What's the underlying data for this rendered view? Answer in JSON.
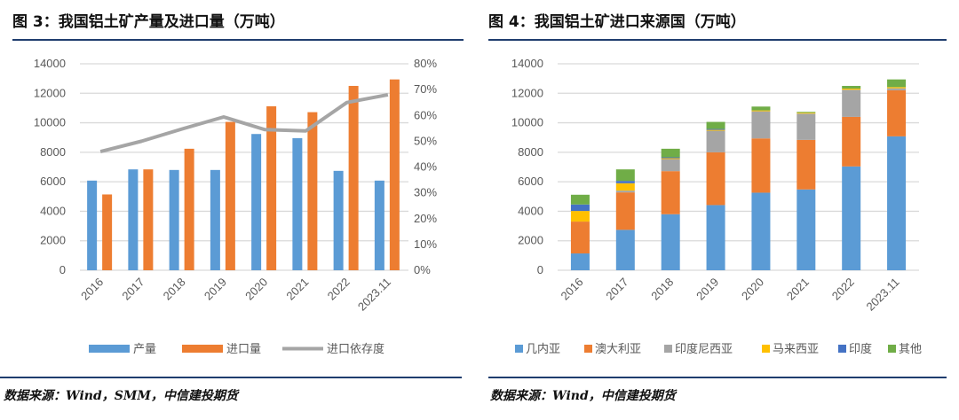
{
  "left": {
    "title": "图 3：我国铝土矿产量及进口量（万吨）",
    "source": "数据来源：Wind，SMM，中信建投期货"
  },
  "right": {
    "title": "图 4：我国铝土矿进口来源国（万吨）",
    "source": "数据来源：Wind，中信建投期货"
  },
  "chart_data": [
    {
      "type": "bar+line",
      "categories": [
        "2016",
        "2017",
        "2018",
        "2019",
        "2020",
        "2021",
        "2022",
        "2023.11"
      ],
      "ylim": [
        0,
        14000
      ],
      "yticks": [
        0,
        2000,
        4000,
        6000,
        8000,
        10000,
        12000,
        14000
      ],
      "y2lim": [
        0,
        0.8
      ],
      "y2ticks": [
        "0%",
        "10%",
        "20%",
        "30%",
        "40%",
        "50%",
        "60%",
        "70%",
        "80%"
      ],
      "grid": true,
      "legend": "bottom",
      "series": [
        {
          "name": "产量",
          "type": "bar",
          "color": "#5B9BD5",
          "values": [
            6080,
            6840,
            6800,
            6800,
            9240,
            8960,
            6740,
            6080
          ]
        },
        {
          "name": "进口量",
          "type": "bar",
          "color": "#ED7D31",
          "values": [
            5140,
            6840,
            8240,
            10060,
            11120,
            10720,
            12500,
            12940
          ]
        },
        {
          "name": "进口依存度",
          "type": "line",
          "axis": "right",
          "color": "#A5A5A5",
          "values": [
            0.46,
            0.5,
            0.548,
            0.594,
            0.545,
            0.54,
            0.65,
            0.68
          ]
        }
      ]
    },
    {
      "type": "stacked-bar",
      "categories": [
        "2016",
        "2017",
        "2018",
        "2019",
        "2020",
        "2021",
        "2022",
        "2023.11"
      ],
      "ylim": [
        0,
        14000
      ],
      "yticks": [
        0,
        2000,
        4000,
        6000,
        8000,
        10000,
        12000,
        14000
      ],
      "grid": true,
      "legend": "bottom",
      "series": [
        {
          "name": "几内亚",
          "color": "#5B9BD5",
          "values": [
            1140,
            2740,
            3800,
            4420,
            5260,
            5480,
            7040,
            9080
          ]
        },
        {
          "name": "澳大利亚",
          "color": "#ED7D31",
          "values": [
            2160,
            2540,
            2920,
            3580,
            3680,
            3360,
            3360,
            3120
          ]
        },
        {
          "name": "印度尼西亚",
          "color": "#A5A5A5",
          "values": [
            0,
            120,
            820,
            1460,
            1840,
            1780,
            1840,
            140
          ]
        },
        {
          "name": "马来西亚",
          "color": "#FFC000",
          "values": [
            720,
            500,
            60,
            60,
            60,
            60,
            80,
            80
          ]
        },
        {
          "name": "印度",
          "color": "#4472C4",
          "values": [
            440,
            160,
            60,
            60,
            0,
            0,
            0,
            0
          ]
        },
        {
          "name": "其他",
          "color": "#70AD47",
          "values": [
            660,
            780,
            580,
            480,
            260,
            60,
            180,
            520
          ]
        }
      ]
    }
  ]
}
